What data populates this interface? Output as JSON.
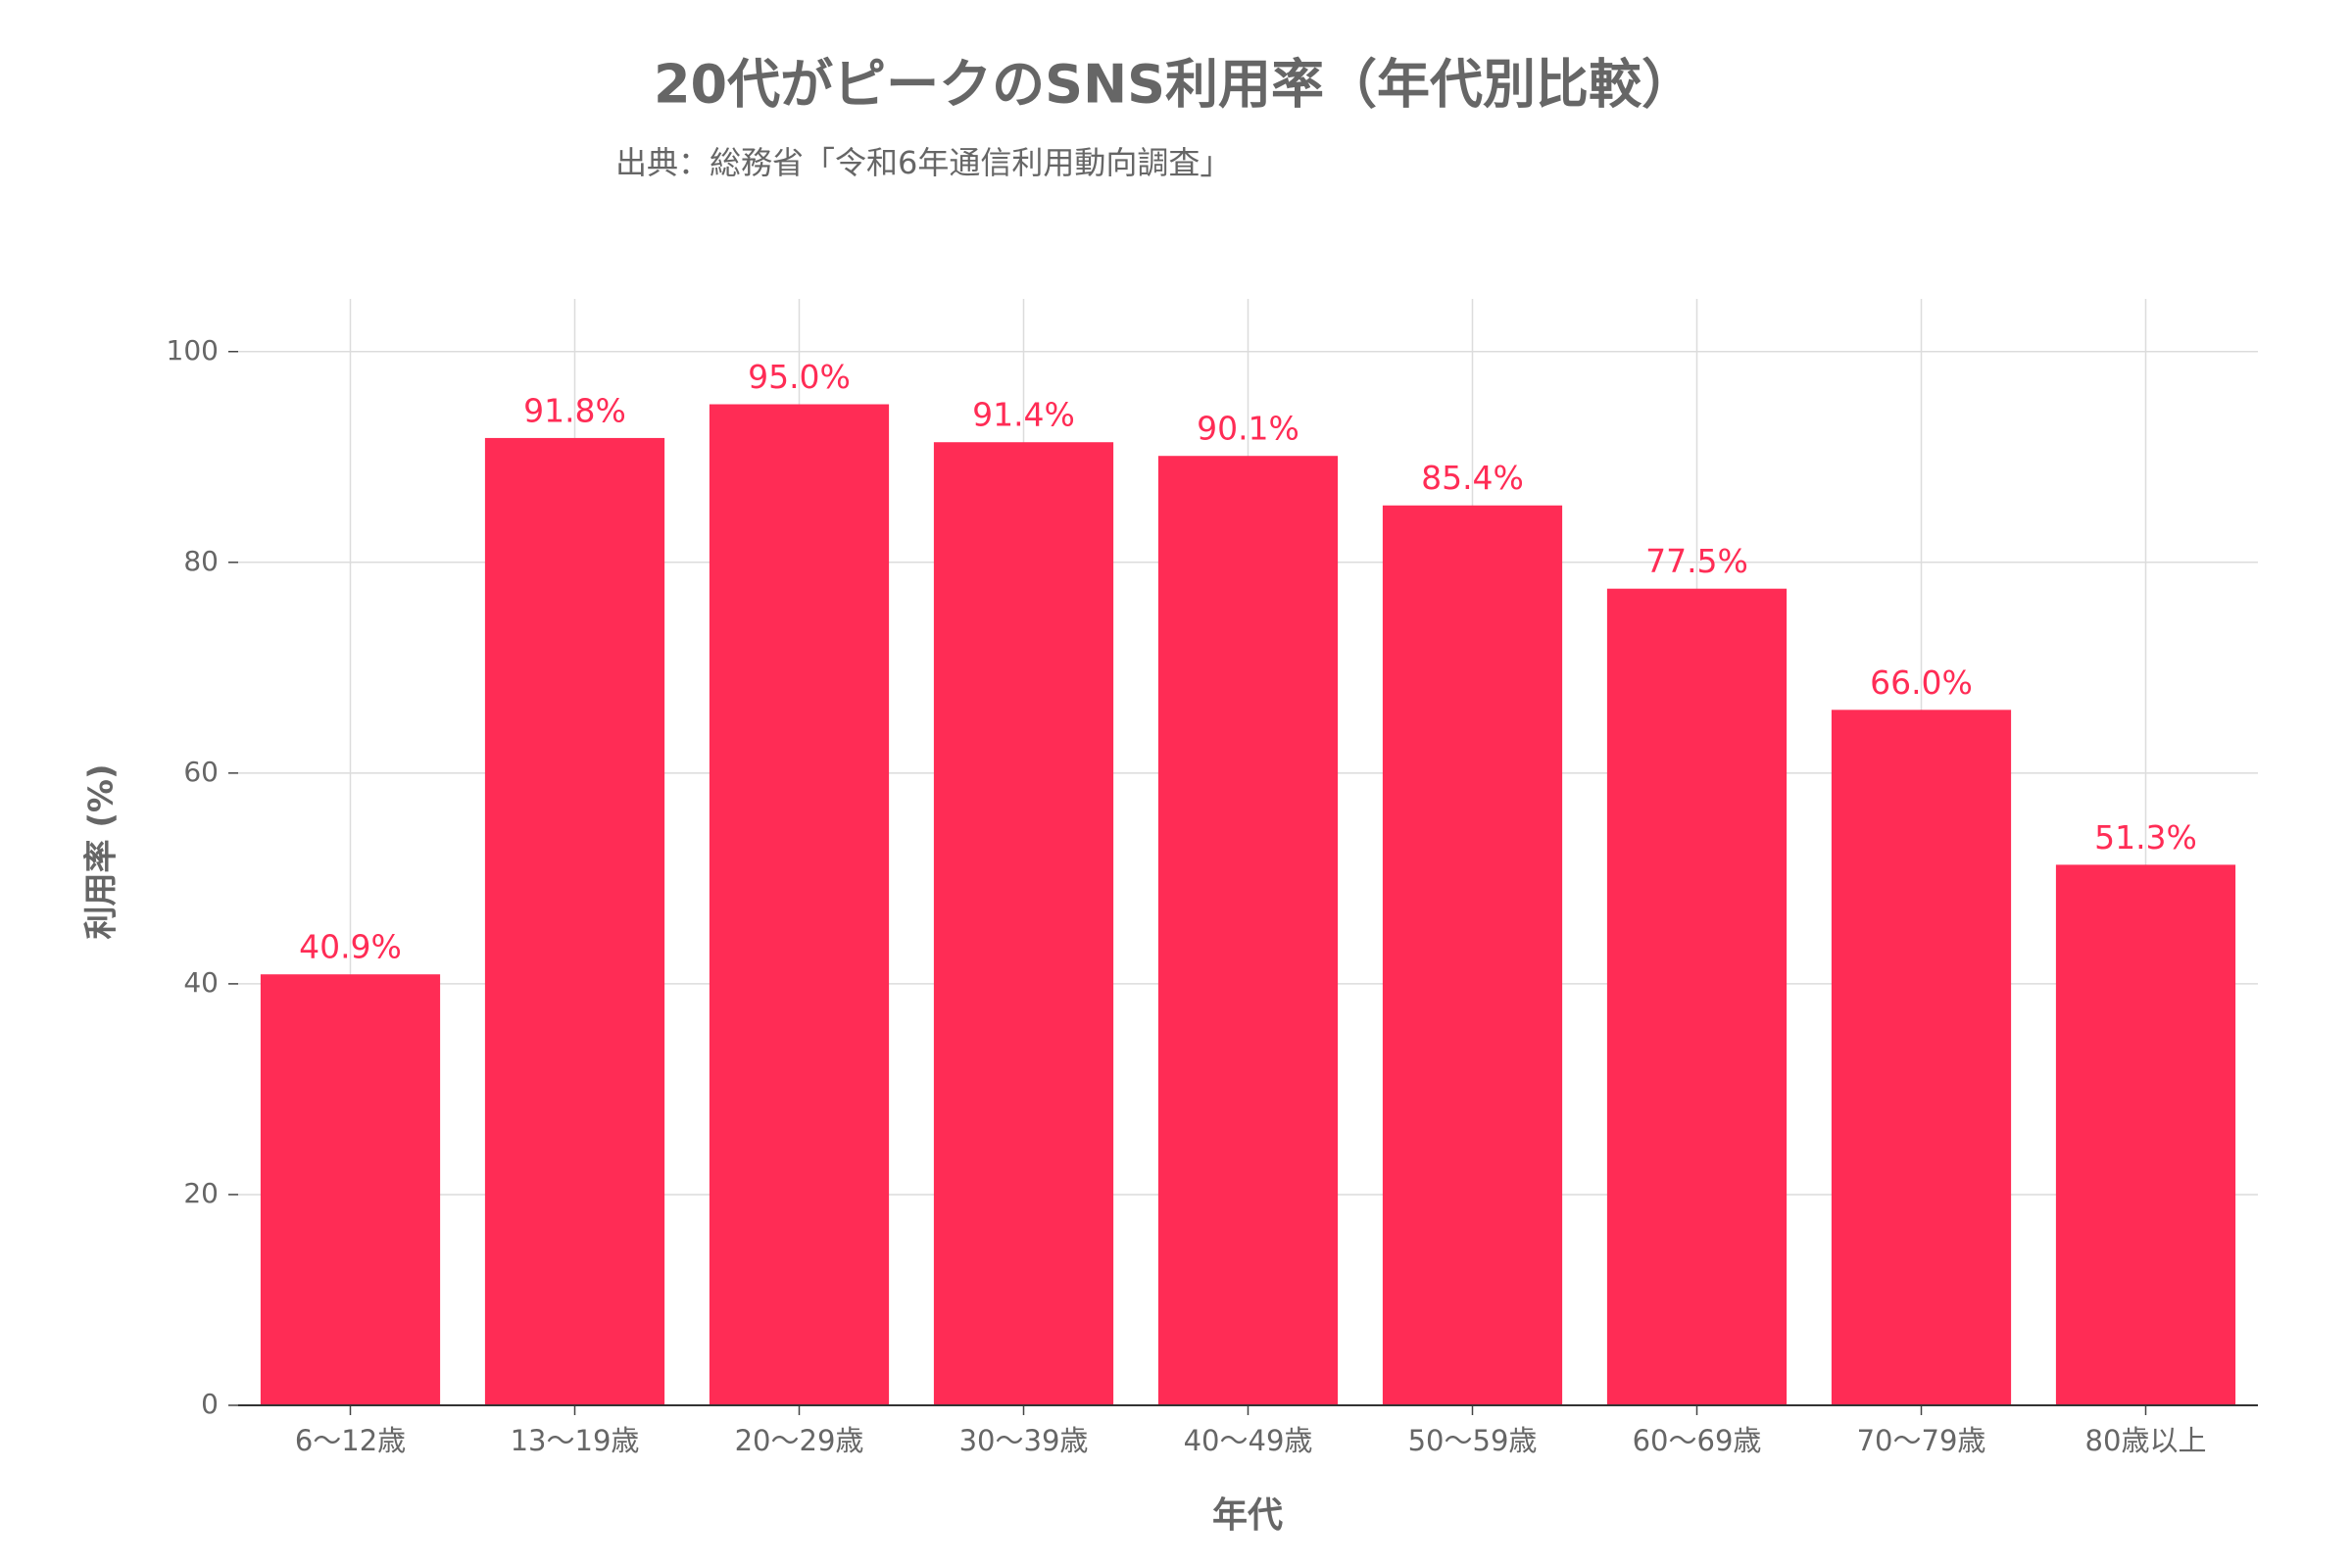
{
  "chart_data": {
    "type": "bar",
    "title": "20代がピークのSNS利用率（年代別比較）",
    "subtitle": "出典：総務省「令和6年通信利用動向調査」",
    "x_label": "年代",
    "y_label": "利用率 (%)",
    "categories": [
      "6〜12歳",
      "13〜19歳",
      "20〜29歳",
      "30〜39歳",
      "40〜49歳",
      "50〜59歳",
      "60〜69歳",
      "70〜79歳",
      "80歳以上"
    ],
    "values": [
      40.9,
      91.8,
      95.0,
      91.4,
      90.1,
      85.4,
      77.5,
      66.0,
      51.3
    ],
    "value_labels": [
      "40.9%",
      "91.8%",
      "95.0%",
      "91.4%",
      "90.1%",
      "85.4%",
      "77.5%",
      "66.0%",
      "51.3%"
    ],
    "color": "#ff2c55",
    "ylim": [
      0,
      105
    ],
    "yticks": [
      0,
      20,
      40,
      60,
      80,
      100
    ],
    "grid": true
  }
}
